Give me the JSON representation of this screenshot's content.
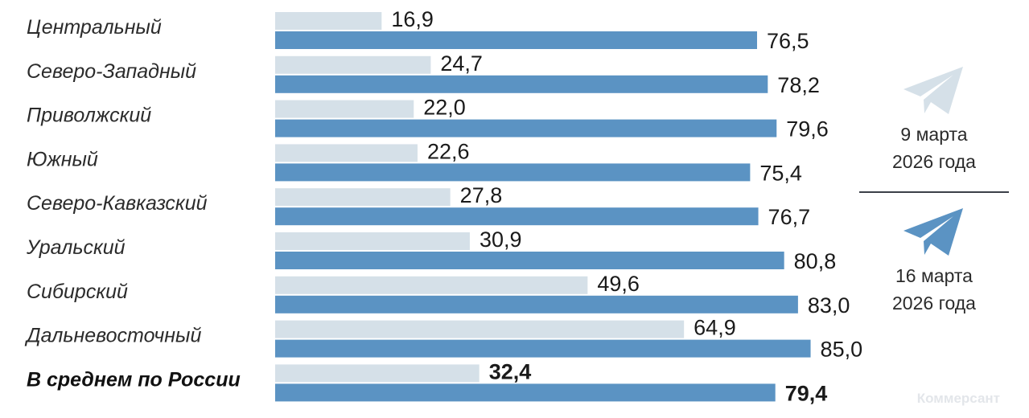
{
  "chart_data": {
    "type": "bar",
    "orientation": "horizontal",
    "categories": [
      "Центральный",
      "Северо-Западный",
      "Приволжский",
      "Южный",
      "Северо-Кавказский",
      "Уральский",
      "Сибирский",
      "Дальневосточный",
      "В среднем по России"
    ],
    "series": [
      {
        "name": "9 марта 2026 года",
        "color": "#d5e0e8",
        "values": [
          16.9,
          24.7,
          22.0,
          22.6,
          27.8,
          30.9,
          49.6,
          64.9,
          32.4
        ],
        "labels": [
          "16,9",
          "24,7",
          "22,0",
          "22,6",
          "27,8",
          "30,9",
          "49,6",
          "64,9",
          "32,4"
        ]
      },
      {
        "name": "16 марта 2026 года",
        "color": "#5b93c3",
        "values": [
          76.5,
          78.2,
          79.6,
          75.4,
          76.7,
          80.8,
          83.0,
          85.0,
          79.4
        ],
        "labels": [
          "76,5",
          "78,2",
          "79,6",
          "75,4",
          "76,7",
          "80,8",
          "83,0",
          "85,0",
          "79,4"
        ]
      }
    ],
    "emphasized_category": "В среднем по России",
    "legend": [
      {
        "line1": "9 марта",
        "line2": "2026 года",
        "icon": "telegram-plane-icon",
        "color": "#d5e0e8"
      },
      {
        "line1": "16 марта",
        "line2": "2026 года",
        "icon": "telegram-plane-icon",
        "color": "#5b93c3"
      }
    ],
    "legend_position": "right",
    "grid": false
  },
  "watermark": "Коммерсант"
}
